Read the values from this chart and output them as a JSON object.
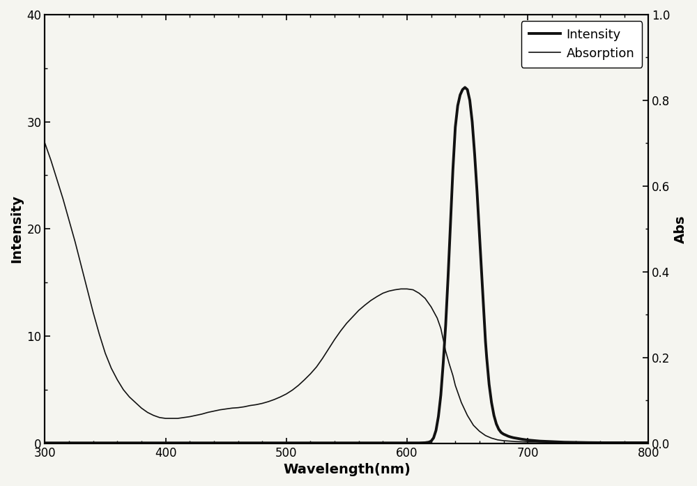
{
  "title": "",
  "xlabel": "Wavelength(nm)",
  "ylabel_left": "Intensity",
  "ylabel_right": "Abs",
  "xlim": [
    300,
    800
  ],
  "ylim_left": [
    0,
    40
  ],
  "ylim_right": [
    0,
    1.0
  ],
  "xticks": [
    300,
    400,
    500,
    600,
    700,
    800
  ],
  "yticks_left": [
    0,
    10,
    20,
    30,
    40
  ],
  "yticks_right": [
    0.0,
    0.2,
    0.4,
    0.6,
    0.8,
    1.0
  ],
  "legend_labels": [
    "Intensity",
    "Absorption"
  ],
  "line_color": "#111111",
  "background_color": "#f5f5f0",
  "intensity_x": [
    300,
    610,
    615,
    618,
    620,
    622,
    624,
    626,
    628,
    630,
    632,
    634,
    636,
    638,
    640,
    642,
    644,
    646,
    648,
    650,
    652,
    654,
    656,
    658,
    660,
    662,
    664,
    665,
    666,
    668,
    670,
    672,
    674,
    676,
    678,
    680,
    682,
    684,
    686,
    688,
    690,
    695,
    700,
    710,
    720,
    730,
    740,
    750,
    760,
    770,
    780,
    790,
    800
  ],
  "intensity_y": [
    0.03,
    0.03,
    0.05,
    0.1,
    0.2,
    0.5,
    1.2,
    2.5,
    4.5,
    7.5,
    11.0,
    15.5,
    20.5,
    25.5,
    29.5,
    31.5,
    32.5,
    33.0,
    33.2,
    33.0,
    32.0,
    30.0,
    27.0,
    23.5,
    19.5,
    15.5,
    11.5,
    9.5,
    8.0,
    5.5,
    3.8,
    2.6,
    1.8,
    1.3,
    1.0,
    0.85,
    0.75,
    0.65,
    0.58,
    0.52,
    0.48,
    0.38,
    0.3,
    0.2,
    0.15,
    0.1,
    0.08,
    0.06,
    0.05,
    0.04,
    0.03,
    0.03,
    0.02
  ],
  "absorption_x": [
    300,
    305,
    310,
    315,
    320,
    325,
    330,
    335,
    340,
    345,
    350,
    355,
    360,
    365,
    370,
    375,
    380,
    385,
    390,
    395,
    400,
    405,
    410,
    415,
    420,
    425,
    430,
    435,
    440,
    445,
    450,
    455,
    460,
    465,
    470,
    475,
    480,
    485,
    490,
    495,
    500,
    505,
    510,
    515,
    520,
    525,
    530,
    535,
    540,
    545,
    550,
    555,
    560,
    565,
    570,
    575,
    580,
    585,
    590,
    595,
    600,
    605,
    610,
    615,
    620,
    625,
    628,
    630,
    632,
    635,
    638,
    640,
    645,
    650,
    655,
    660,
    665,
    670,
    675,
    680,
    690,
    700,
    710,
    720,
    730,
    740,
    750,
    760,
    770,
    780,
    790,
    800
  ],
  "absorption_y": [
    0.7,
    0.66,
    0.615,
    0.57,
    0.52,
    0.47,
    0.415,
    0.36,
    0.305,
    0.255,
    0.21,
    0.175,
    0.148,
    0.125,
    0.108,
    0.095,
    0.082,
    0.072,
    0.065,
    0.06,
    0.058,
    0.058,
    0.058,
    0.06,
    0.062,
    0.065,
    0.068,
    0.072,
    0.075,
    0.078,
    0.08,
    0.082,
    0.083,
    0.085,
    0.088,
    0.09,
    0.093,
    0.097,
    0.102,
    0.108,
    0.115,
    0.124,
    0.135,
    0.148,
    0.162,
    0.178,
    0.198,
    0.22,
    0.242,
    0.262,
    0.28,
    0.295,
    0.31,
    0.322,
    0.333,
    0.342,
    0.35,
    0.355,
    0.358,
    0.36,
    0.36,
    0.358,
    0.35,
    0.338,
    0.318,
    0.292,
    0.268,
    0.242,
    0.215,
    0.185,
    0.158,
    0.135,
    0.095,
    0.065,
    0.042,
    0.028,
    0.018,
    0.012,
    0.008,
    0.006,
    0.004,
    0.003,
    0.003,
    0.003,
    0.003,
    0.003,
    0.003,
    0.003,
    0.003,
    0.003,
    0.003,
    0.003
  ]
}
